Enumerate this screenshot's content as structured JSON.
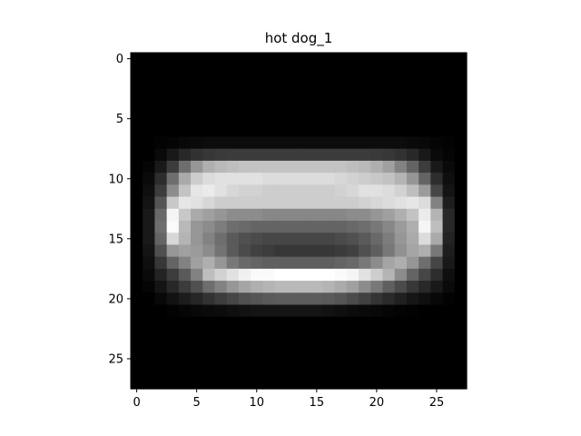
{
  "chart_data": {
    "type": "heatmap",
    "title": "hot dog_1",
    "xlabel": "",
    "ylabel": "",
    "colormap": "gray",
    "vmin": 0,
    "vmax": 255,
    "grid": false,
    "xlim": [
      -0.5,
      27.5
    ],
    "ylim": [
      27.5,
      -0.5
    ],
    "xticks": [
      0,
      5,
      10,
      15,
      20,
      25
    ],
    "yticks": [
      0,
      5,
      10,
      15,
      20,
      25
    ],
    "values": [
      [
        0,
        0,
        0,
        0,
        0,
        0,
        0,
        0,
        0,
        0,
        0,
        0,
        0,
        0,
        0,
        0,
        0,
        0,
        0,
        0,
        0,
        0,
        0,
        0,
        0,
        0,
        0,
        0
      ],
      [
        0,
        0,
        0,
        0,
        0,
        0,
        0,
        0,
        0,
        0,
        0,
        0,
        0,
        0,
        0,
        0,
        0,
        0,
        0,
        0,
        0,
        0,
        0,
        0,
        0,
        0,
        0,
        0
      ],
      [
        0,
        0,
        0,
        0,
        0,
        0,
        0,
        0,
        0,
        0,
        0,
        0,
        0,
        0,
        0,
        0,
        0,
        0,
        0,
        0,
        0,
        0,
        0,
        0,
        0,
        0,
        0,
        0
      ],
      [
        0,
        0,
        0,
        0,
        0,
        0,
        0,
        0,
        0,
        0,
        0,
        0,
        0,
        0,
        0,
        0,
        0,
        0,
        0,
        0,
        0,
        0,
        0,
        0,
        0,
        0,
        0,
        0
      ],
      [
        0,
        0,
        0,
        0,
        0,
        0,
        0,
        0,
        0,
        0,
        0,
        0,
        0,
        0,
        0,
        0,
        0,
        0,
        0,
        0,
        0,
        0,
        0,
        0,
        0,
        0,
        0,
        0
      ],
      [
        0,
        0,
        0,
        0,
        0,
        0,
        0,
        0,
        0,
        0,
        0,
        0,
        0,
        0,
        0,
        0,
        0,
        0,
        0,
        0,
        0,
        0,
        0,
        0,
        0,
        0,
        0,
        0
      ],
      [
        0,
        0,
        0,
        0,
        0,
        0,
        0,
        0,
        0,
        0,
        0,
        0,
        0,
        0,
        0,
        0,
        0,
        0,
        0,
        0,
        0,
        0,
        0,
        0,
        0,
        0,
        0,
        0
      ],
      [
        0,
        0,
        3,
        5,
        8,
        10,
        12,
        12,
        12,
        12,
        12,
        12,
        12,
        12,
        12,
        12,
        12,
        12,
        12,
        12,
        12,
        12,
        12,
        10,
        8,
        5,
        3,
        0
      ],
      [
        0,
        0,
        10,
        25,
        40,
        50,
        55,
        58,
        60,
        60,
        60,
        60,
        60,
        60,
        60,
        60,
        60,
        60,
        60,
        60,
        58,
        55,
        50,
        40,
        25,
        10,
        5,
        0
      ],
      [
        0,
        5,
        25,
        60,
        110,
        150,
        175,
        185,
        190,
        195,
        195,
        195,
        195,
        195,
        195,
        195,
        195,
        195,
        190,
        185,
        175,
        160,
        130,
        100,
        60,
        25,
        10,
        0
      ],
      [
        0,
        10,
        45,
        110,
        170,
        205,
        220,
        225,
        225,
        225,
        225,
        220,
        220,
        220,
        220,
        220,
        220,
        215,
        210,
        205,
        200,
        195,
        180,
        150,
        100,
        45,
        15,
        0
      ],
      [
        0,
        15,
        60,
        140,
        195,
        230,
        235,
        225,
        215,
        210,
        210,
        205,
        205,
        205,
        205,
        205,
        205,
        210,
        215,
        225,
        225,
        220,
        210,
        190,
        155,
        70,
        20,
        0
      ],
      [
        0,
        20,
        85,
        200,
        230,
        225,
        215,
        205,
        205,
        205,
        205,
        205,
        205,
        205,
        205,
        205,
        205,
        205,
        205,
        210,
        215,
        220,
        225,
        230,
        220,
        130,
        30,
        0
      ],
      [
        0,
        25,
        105,
        245,
        200,
        170,
        160,
        150,
        140,
        140,
        140,
        135,
        135,
        135,
        135,
        135,
        135,
        135,
        140,
        140,
        150,
        160,
        175,
        195,
        235,
        180,
        40,
        0
      ],
      [
        0,
        25,
        110,
        250,
        185,
        150,
        140,
        125,
        110,
        105,
        100,
        100,
        100,
        100,
        100,
        100,
        100,
        100,
        105,
        110,
        120,
        135,
        155,
        175,
        245,
        190,
        40,
        0
      ],
      [
        0,
        25,
        100,
        215,
        180,
        150,
        130,
        110,
        90,
        80,
        75,
        70,
        70,
        70,
        70,
        70,
        70,
        75,
        80,
        90,
        105,
        125,
        150,
        170,
        220,
        170,
        35,
        0
      ],
      [
        0,
        20,
        80,
        150,
        160,
        155,
        140,
        115,
        90,
        75,
        65,
        60,
        55,
        55,
        55,
        55,
        55,
        60,
        65,
        80,
        95,
        120,
        145,
        165,
        175,
        120,
        30,
        0
      ],
      [
        0,
        15,
        55,
        100,
        130,
        160,
        175,
        150,
        120,
        105,
        100,
        95,
        95,
        95,
        95,
        95,
        95,
        100,
        105,
        120,
        140,
        165,
        175,
        150,
        110,
        70,
        25,
        0
      ],
      [
        0,
        10,
        35,
        60,
        90,
        130,
        190,
        210,
        225,
        240,
        250,
        250,
        255,
        255,
        255,
        255,
        255,
        250,
        245,
        225,
        205,
        180,
        140,
        100,
        70,
        45,
        15,
        0
      ],
      [
        0,
        5,
        20,
        40,
        60,
        80,
        110,
        130,
        150,
        165,
        175,
        180,
        185,
        185,
        185,
        185,
        180,
        170,
        160,
        140,
        120,
        95,
        75,
        55,
        40,
        25,
        10,
        0
      ],
      [
        0,
        0,
        8,
        18,
        28,
        38,
        50,
        60,
        70,
        80,
        85,
        90,
        92,
        92,
        92,
        92,
        90,
        85,
        75,
        65,
        52,
        42,
        32,
        22,
        15,
        8,
        3,
        0
      ],
      [
        0,
        0,
        0,
        3,
        5,
        8,
        10,
        12,
        15,
        18,
        20,
        20,
        20,
        20,
        20,
        20,
        18,
        15,
        12,
        10,
        8,
        5,
        3,
        2,
        0,
        0,
        0,
        0
      ],
      [
        0,
        0,
        0,
        0,
        0,
        0,
        0,
        0,
        0,
        0,
        0,
        0,
        0,
        0,
        0,
        0,
        0,
        0,
        0,
        0,
        0,
        0,
        0,
        0,
        0,
        0,
        0,
        0
      ],
      [
        0,
        0,
        0,
        0,
        0,
        0,
        0,
        0,
        0,
        0,
        0,
        0,
        0,
        0,
        0,
        0,
        0,
        0,
        0,
        0,
        0,
        0,
        0,
        0,
        0,
        0,
        0,
        0
      ],
      [
        0,
        0,
        0,
        0,
        0,
        0,
        0,
        0,
        0,
        0,
        0,
        0,
        0,
        0,
        0,
        0,
        0,
        0,
        0,
        0,
        0,
        0,
        0,
        0,
        0,
        0,
        0,
        0
      ],
      [
        0,
        0,
        0,
        0,
        0,
        0,
        0,
        0,
        0,
        0,
        0,
        0,
        0,
        0,
        0,
        0,
        0,
        0,
        0,
        0,
        0,
        0,
        0,
        0,
        0,
        0,
        0,
        0
      ],
      [
        0,
        0,
        0,
        0,
        0,
        0,
        0,
        0,
        0,
        0,
        0,
        0,
        0,
        0,
        0,
        0,
        0,
        0,
        0,
        0,
        0,
        0,
        0,
        0,
        0,
        0,
        0,
        0
      ],
      [
        0,
        0,
        0,
        0,
        0,
        0,
        0,
        0,
        0,
        0,
        0,
        0,
        0,
        0,
        0,
        0,
        0,
        0,
        0,
        0,
        0,
        0,
        0,
        0,
        0,
        0,
        0,
        0
      ]
    ]
  }
}
